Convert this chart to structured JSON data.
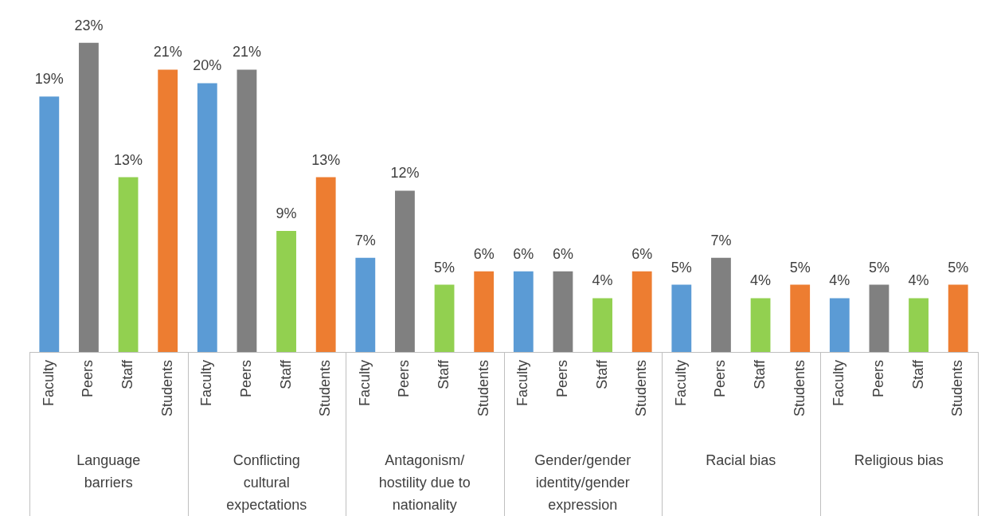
{
  "chart_data": {
    "type": "bar",
    "categories": [
      "Language barriers",
      "Conflicting cultural expectations",
      "Antagonism/ hostility due to nationality",
      "Gender/gender identity/gender expression",
      "Racial bias",
      "Religious bias"
    ],
    "series": [
      {
        "name": "Faculty",
        "color": "#5b9bd5",
        "values": [
          19,
          20,
          7,
          6,
          5,
          4
        ],
        "value_labels": [
          "19%",
          "20%",
          "7%",
          "6%",
          "5%",
          "4%"
        ]
      },
      {
        "name": "Peers",
        "color": "#808080",
        "values": [
          23,
          21,
          12,
          6,
          7,
          5
        ],
        "value_labels": [
          "23%",
          "21%",
          "12%",
          "6%",
          "7%",
          "5%"
        ]
      },
      {
        "name": "Staff",
        "color": "#92d050",
        "values": [
          13,
          9,
          5,
          4,
          4,
          4
        ],
        "value_labels": [
          "13%",
          "9%",
          "5%",
          "4%",
          "4%",
          "4%"
        ]
      },
      {
        "name": "Students",
        "color": "#ed7d31",
        "values": [
          21,
          13,
          6,
          6,
          5,
          5
        ],
        "value_labels": [
          "21%",
          "13%",
          "6%",
          "6%",
          "5%",
          "5%"
        ]
      }
    ]
  }
}
